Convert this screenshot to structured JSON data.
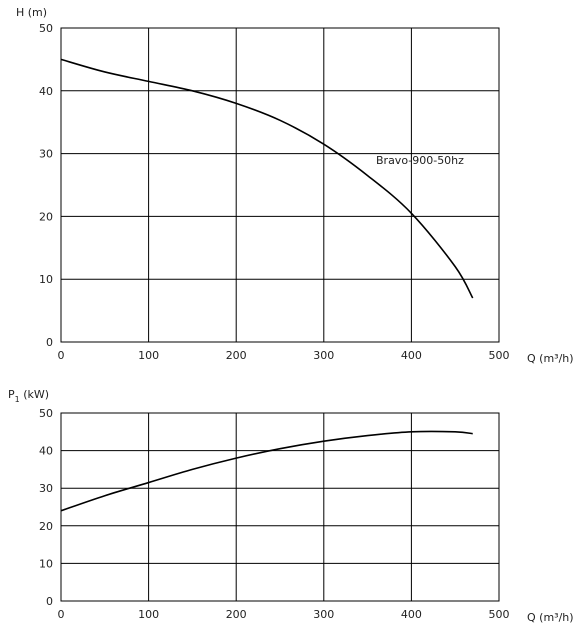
{
  "chart_data": [
    {
      "type": "line",
      "title": "",
      "ylabel": "H  (m)",
      "xlabel": "Q (m³/h)",
      "xlim": [
        0,
        500
      ],
      "ylim": [
        0,
        50
      ],
      "xticks": [
        "0",
        "100",
        "200",
        "300",
        "400",
        "500"
      ],
      "yticks": [
        "0",
        "10",
        "20",
        "30",
        "40",
        "50"
      ],
      "grid": true,
      "series": [
        {
          "name": "Bravo-900-50hz",
          "x": [
            0,
            50,
            100,
            150,
            200,
            250,
            300,
            350,
            400,
            450,
            470
          ],
          "y": [
            45,
            43,
            41.5,
            40,
            38,
            35.3,
            31.5,
            26.5,
            20.5,
            12,
            7
          ]
        }
      ]
    },
    {
      "type": "line",
      "title": "",
      "ylabel": "P1 (kW)",
      "ylabel_main": "P",
      "ylabel_sub": "1",
      "ylabel_unit": " (kW)",
      "xlabel": "Q (m³/h)",
      "xlim": [
        0,
        500
      ],
      "ylim": [
        0,
        50
      ],
      "xticks": [
        "0",
        "100",
        "200",
        "300",
        "400",
        "500"
      ],
      "yticks": [
        "0",
        "10",
        "20",
        "30",
        "40",
        "50"
      ],
      "grid": true,
      "series": [
        {
          "x": [
            0,
            50,
            100,
            150,
            200,
            250,
            300,
            350,
            400,
            450,
            470
          ],
          "y": [
            24,
            28,
            31.5,
            35,
            38,
            40.5,
            42.5,
            44,
            45,
            45,
            44.5
          ]
        }
      ]
    }
  ]
}
